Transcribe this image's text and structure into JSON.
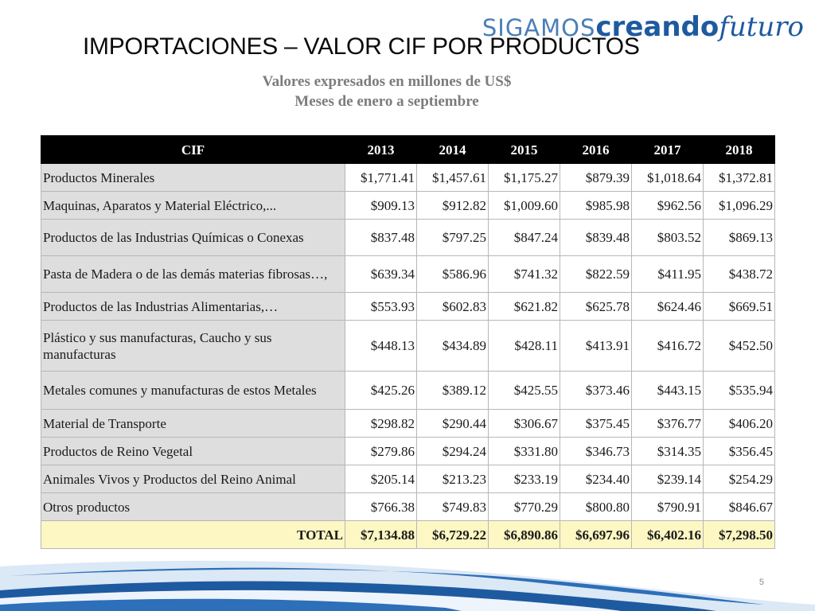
{
  "logo": {
    "part1": "SIGAMOS",
    "part2": "creando",
    "part3": "futuro"
  },
  "title": "IMPORTACIONES – VALOR CIF POR PRODUCTOS",
  "subtitle_line1": "Valores expresados en millones de US$",
  "subtitle_line2": "Meses de enero a septiembre",
  "table": {
    "headers": [
      "CIF",
      "2013",
      "2014",
      "2015",
      "2016",
      "2017",
      "2018"
    ],
    "rows": [
      {
        "product": "Productos Minerales",
        "values": [
          "$1,771.41",
          "$1,457.61",
          "$1,175.27",
          "$879.39",
          "$1,018.64",
          "$1,372.81"
        ]
      },
      {
        "product": "Maquinas, Aparatos y Material Eléctrico,...",
        "values": [
          "$909.13",
          "$912.82",
          "$1,009.60",
          "$985.98",
          "$962.56",
          "$1,096.29"
        ]
      },
      {
        "product": "Productos de las Industrias Químicas o Conexas",
        "values": [
          "$837.48",
          "$797.25",
          "$847.24",
          "$839.48",
          "$803.52",
          "$869.13"
        ]
      },
      {
        "product": "Pasta de Madera o de las demás materias fibrosas…,",
        "values": [
          "$639.34",
          "$586.96",
          "$741.32",
          "$822.59",
          "$411.95",
          "$438.72"
        ]
      },
      {
        "product": "Productos de las Industrias Alimentarias,…",
        "values": [
          "$553.93",
          "$602.83",
          "$621.82",
          "$625.78",
          "$624.46",
          "$669.51"
        ]
      },
      {
        "product": "Plástico y sus manufacturas, Caucho y sus manufacturas",
        "values": [
          "$448.13",
          "$434.89",
          "$428.11",
          "$413.91",
          "$416.72",
          "$452.50"
        ]
      },
      {
        "product": "Metales comunes y manufacturas de estos Metales",
        "values": [
          "$425.26",
          "$389.12",
          "$425.55",
          "$373.46",
          "$443.15",
          "$535.94"
        ]
      },
      {
        "product": "Material de Transporte",
        "values": [
          "$298.82",
          "$290.44",
          "$306.67",
          "$375.45",
          "$376.77",
          "$406.20"
        ]
      },
      {
        "product": "Productos de Reino Vegetal",
        "values": [
          "$279.86",
          "$294.24",
          "$331.80",
          "$346.73",
          "$314.35",
          "$356.45"
        ]
      },
      {
        "product": "Animales Vivos y Productos del Reino Animal",
        "values": [
          "$205.14",
          "$213.23",
          "$233.19",
          "$234.40",
          "$239.14",
          "$254.29"
        ]
      },
      {
        "product": "Otros productos",
        "values": [
          "$766.38",
          "$749.83",
          "$770.29",
          "$800.80",
          "$790.91",
          "$846.67"
        ]
      }
    ],
    "total": {
      "label": "TOTAL",
      "values": [
        "$7,134.88",
        "$6,729.22",
        "$6,890.86",
        "$6,697.96",
        "$6,402.16",
        "$7,298.50"
      ]
    }
  },
  "page_number": "5",
  "colors": {
    "header_bg": "#000000",
    "product_cell_bg": "#dedede",
    "total_row_bg": "#fdf7c3",
    "logo_blue": "#1e5aa0",
    "swoosh_blue": "#2d6fb8"
  }
}
